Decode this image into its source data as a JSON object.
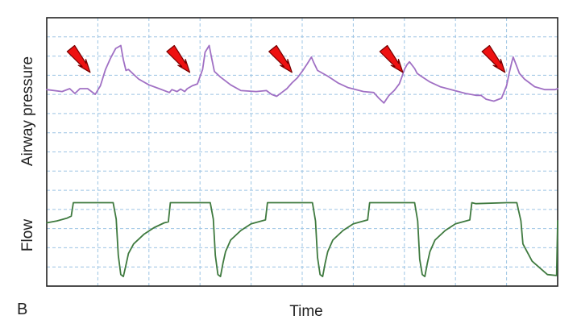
{
  "figure": {
    "panel_label": "B"
  },
  "colors": {
    "grid": "#9cc4e4",
    "frame": "#222222",
    "pressure_trace": "#a070c4",
    "flow_trace": "#3f7a3f",
    "arrow_fill": "#ee1111",
    "arrow_stroke": "#770000"
  },
  "chart_data": {
    "type": "line",
    "xlabel": "Time",
    "grid": true,
    "x_divisions": 10,
    "y_divisions": 14,
    "y_range_divisions": [
      0,
      14
    ],
    "series": [
      {
        "name": "Airway pressure",
        "units": "grid divisions",
        "x": [
          0.0,
          0.3,
          0.45,
          0.55,
          0.65,
          0.8,
          0.95,
          1.05,
          1.15,
          1.25,
          1.35,
          1.45,
          1.5,
          1.55,
          1.6,
          1.72,
          1.8,
          2.0,
          2.2,
          2.4,
          2.45,
          2.55,
          2.62,
          2.7,
          2.75,
          2.85,
          2.95,
          3.05,
          3.1,
          3.18,
          3.22,
          3.28,
          3.4,
          3.6,
          3.8,
          4.1,
          4.3,
          4.4,
          4.5,
          4.6,
          4.7,
          4.8,
          4.9,
          5.0,
          5.1,
          5.18,
          5.22,
          5.3,
          5.5,
          5.7,
          5.9,
          6.2,
          6.4,
          6.5,
          6.6,
          6.7,
          6.8,
          6.9,
          6.95,
          7.0,
          7.05,
          7.1,
          7.2,
          7.25,
          7.3,
          7.5,
          7.7,
          8.2,
          8.4,
          8.5,
          8.6,
          8.75,
          8.9,
          9.0,
          9.05,
          9.1,
          9.13,
          9.18,
          9.25,
          9.35,
          9.55,
          9.75,
          9.95,
          10.0
        ],
        "y": [
          10.25,
          10.15,
          10.3,
          10.05,
          10.3,
          10.3,
          10.0,
          10.45,
          11.3,
          11.9,
          12.4,
          12.55,
          11.8,
          11.25,
          11.3,
          11.0,
          10.8,
          10.5,
          10.3,
          10.1,
          10.25,
          10.15,
          10.28,
          10.15,
          10.3,
          10.45,
          10.55,
          11.3,
          12.2,
          12.55,
          12.0,
          11.2,
          10.9,
          10.5,
          10.2,
          10.15,
          10.2,
          10.0,
          9.9,
          10.1,
          10.3,
          10.6,
          10.85,
          11.2,
          11.6,
          11.95,
          11.7,
          11.25,
          10.95,
          10.6,
          10.35,
          10.15,
          10.1,
          9.8,
          9.55,
          9.95,
          10.2,
          10.55,
          10.9,
          11.3,
          11.55,
          11.7,
          11.35,
          11.1,
          11.0,
          10.65,
          10.4,
          10.05,
          9.95,
          9.95,
          9.75,
          9.65,
          9.8,
          10.45,
          11.1,
          11.65,
          11.95,
          11.6,
          11.1,
          10.8,
          10.4,
          10.25,
          10.25,
          10.3
        ]
      },
      {
        "name": "Flow",
        "units": "grid divisions",
        "x": [
          0.0,
          0.2,
          0.4,
          0.48,
          0.52,
          0.65,
          1.3,
          1.36,
          1.4,
          1.45,
          1.5,
          1.55,
          1.6,
          1.7,
          1.9,
          2.1,
          2.3,
          2.38,
          2.42,
          2.5,
          3.2,
          3.26,
          3.3,
          3.35,
          3.4,
          3.45,
          3.5,
          3.6,
          3.8,
          4.0,
          4.28,
          4.32,
          4.4,
          5.2,
          5.26,
          5.3,
          5.35,
          5.4,
          5.45,
          5.5,
          5.6,
          5.8,
          6.0,
          6.28,
          6.32,
          6.4,
          7.2,
          7.26,
          7.3,
          7.35,
          7.4,
          7.45,
          7.5,
          7.6,
          7.8,
          8.0,
          8.28,
          8.32,
          8.4,
          9.0,
          9.2,
          9.28,
          9.32,
          9.5,
          9.8,
          9.98,
          10.0
        ],
        "y": [
          3.3,
          3.4,
          3.55,
          3.65,
          4.35,
          4.35,
          4.35,
          3.5,
          1.6,
          0.6,
          0.5,
          1.1,
          1.7,
          2.2,
          2.7,
          3.05,
          3.3,
          3.35,
          4.35,
          4.35,
          4.35,
          3.5,
          1.6,
          0.6,
          0.5,
          1.2,
          1.8,
          2.4,
          2.9,
          3.25,
          3.45,
          4.35,
          4.35,
          4.35,
          3.4,
          1.5,
          0.6,
          0.5,
          1.2,
          1.8,
          2.4,
          2.9,
          3.25,
          3.45,
          4.35,
          4.35,
          4.35,
          3.4,
          1.4,
          0.6,
          0.5,
          1.2,
          1.8,
          2.4,
          2.9,
          3.25,
          3.45,
          4.35,
          4.3,
          4.35,
          4.35,
          3.4,
          2.2,
          1.3,
          0.6,
          0.55,
          3.4
        ]
      }
    ],
    "arrows": [
      {
        "tip_x": 0.85,
        "tip_y": 11.15
      },
      {
        "tip_x": 2.8,
        "tip_y": 11.15
      },
      {
        "tip_x": 4.8,
        "tip_y": 11.15
      },
      {
        "tip_x": 6.97,
        "tip_y": 11.15
      },
      {
        "tip_x": 8.97,
        "tip_y": 11.15
      }
    ]
  }
}
